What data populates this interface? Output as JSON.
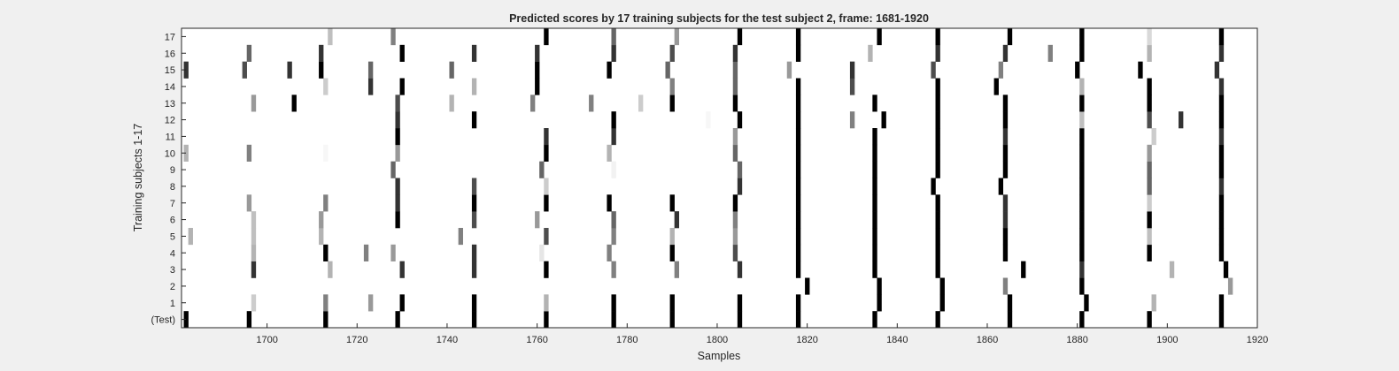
{
  "chart_data": {
    "type": "heatmap",
    "title": "Predicted scores by 17 training subjects for the test subject 2, frame: 1681-1920",
    "xlabel": "Samples",
    "ylabel": "Training subjects 1-17",
    "xlim": [
      1681,
      1920
    ],
    "xticks": [
      1700,
      1720,
      1740,
      1760,
      1780,
      1800,
      1820,
      1840,
      1860,
      1880,
      1900,
      1920
    ],
    "rows": [
      "(Test)",
      "1",
      "2",
      "3",
      "4",
      "5",
      "6",
      "7",
      "8",
      "9",
      "10",
      "11",
      "12",
      "13",
      "14",
      "15",
      "16",
      "17"
    ],
    "grid": false,
    "colormap": "gray-inverted",
    "value_range": [
      0,
      1
    ],
    "marks": [
      {
        "row": "(Test)",
        "x": [
          1682,
          1696,
          1713,
          1729,
          1746,
          1762,
          1777,
          1790,
          1805,
          1818,
          1835,
          1849,
          1865,
          1881,
          1896,
          1912
        ],
        "v": [
          1,
          1,
          1,
          1,
          1,
          1,
          1,
          1,
          1,
          1,
          1,
          1,
          1,
          1,
          1,
          1
        ]
      },
      {
        "row": "1",
        "x": [
          1697,
          1713,
          1723,
          1730,
          1746,
          1762,
          1777,
          1790,
          1805,
          1818,
          1836,
          1850,
          1865,
          1882,
          1897,
          1912
        ],
        "v": [
          0.2,
          0.5,
          0.4,
          1,
          1,
          0.3,
          1,
          1,
          1,
          1,
          1,
          1,
          1,
          1,
          0.3,
          1
        ]
      },
      {
        "row": "2",
        "x": [
          1820,
          1836,
          1850,
          1864,
          1881,
          1914
        ],
        "v": [
          1,
          1,
          1,
          0.5,
          1,
          0.4
        ]
      },
      {
        "row": "3",
        "x": [
          1697,
          1714,
          1730,
          1746,
          1762,
          1777,
          1791,
          1805,
          1818,
          1835,
          1849,
          1868,
          1881,
          1901,
          1913
        ],
        "v": [
          0.8,
          0.3,
          0.8,
          0.8,
          1,
          0.5,
          0.5,
          0.8,
          1,
          1,
          1,
          1,
          0.8,
          0.3,
          1
        ]
      },
      {
        "row": "4",
        "x": [
          1697,
          1713,
          1722,
          1728,
          1746,
          1761,
          1776,
          1790,
          1804,
          1818,
          1835,
          1849,
          1864,
          1881,
          1896,
          1912
        ],
        "v": [
          0.3,
          1,
          0.5,
          0.4,
          0.8,
          0.1,
          0.5,
          1,
          0.7,
          1,
          1,
          1,
          1,
          1,
          1,
          1
        ]
      },
      {
        "row": "5",
        "x": [
          1683,
          1697,
          1712,
          1743,
          1762,
          1777,
          1790,
          1804,
          1818,
          1835,
          1849,
          1864,
          1881,
          1896,
          1912
        ],
        "v": [
          0.3,
          0.25,
          0.3,
          0.5,
          0.7,
          0.5,
          0.3,
          0.4,
          1,
          1,
          1,
          1,
          1,
          0.25,
          1
        ]
      },
      {
        "row": "6",
        "x": [
          1697,
          1712,
          1729,
          1746,
          1760,
          1777,
          1791,
          1804,
          1818,
          1835,
          1849,
          1864,
          1881,
          1896,
          1912
        ],
        "v": [
          0.25,
          0.4,
          1,
          0.7,
          0.4,
          0.6,
          0.8,
          0.5,
          1,
          1,
          1,
          0.8,
          1,
          1,
          1
        ]
      },
      {
        "row": "7",
        "x": [
          1696,
          1713,
          1729,
          1746,
          1762,
          1776,
          1790,
          1804,
          1818,
          1835,
          1849,
          1864,
          1881,
          1896,
          1912
        ],
        "v": [
          0.4,
          0.5,
          0.8,
          1,
          1,
          1,
          1,
          1,
          1,
          1,
          1,
          0.8,
          1,
          0.2,
          1
        ]
      },
      {
        "row": "8",
        "x": [
          1729,
          1746,
          1762,
          1805,
          1818,
          1835,
          1848,
          1863,
          1881,
          1896,
          1912
        ],
        "v": [
          0.8,
          0.7,
          0.2,
          0.8,
          1,
          1,
          1,
          1,
          1,
          0.6,
          0.8
        ]
      },
      {
        "row": "9",
        "x": [
          1728,
          1761,
          1777,
          1805,
          1818,
          1835,
          1849,
          1864,
          1881,
          1896,
          1912
        ],
        "v": [
          0.6,
          0.6,
          0.05,
          0.6,
          1,
          1,
          1,
          1,
          1,
          0.6,
          1
        ]
      },
      {
        "row": "10",
        "x": [
          1682,
          1696,
          1713,
          1729,
          1762,
          1776,
          1804,
          1818,
          1835,
          1849,
          1864,
          1881,
          1896,
          1912
        ],
        "v": [
          0.3,
          0.5,
          0.03,
          0.4,
          1,
          0.3,
          0.6,
          1,
          1,
          1,
          1,
          1,
          0.4,
          1
        ]
      },
      {
        "row": "11",
        "x": [
          1729,
          1762,
          1777,
          1804,
          1818,
          1835,
          1849,
          1864,
          1881,
          1897,
          1912
        ],
        "v": [
          1,
          0.8,
          0.8,
          0.4,
          1,
          1,
          1,
          0.8,
          1,
          0.2,
          0.8
        ]
      },
      {
        "row": "12",
        "x": [
          1729,
          1746,
          1777,
          1798,
          1805,
          1818,
          1830,
          1837,
          1849,
          1864,
          1881,
          1896,
          1903,
          1912
        ],
        "v": [
          0.8,
          1,
          1,
          0.03,
          1,
          1,
          0.5,
          1,
          1,
          1,
          0.25,
          0.7,
          0.8,
          1
        ]
      },
      {
        "row": "13",
        "x": [
          1697,
          1706,
          1729,
          1741,
          1759,
          1772,
          1783,
          1790,
          1804,
          1818,
          1835,
          1849,
          1864,
          1881,
          1896,
          1912
        ],
        "v": [
          0.4,
          1,
          0.7,
          0.3,
          0.5,
          0.5,
          0.2,
          1,
          1,
          1,
          1,
          1,
          1,
          1,
          1,
          1
        ]
      },
      {
        "row": "14",
        "x": [
          1713,
          1723,
          1730,
          1746,
          1760,
          1790,
          1804,
          1818,
          1830,
          1849,
          1862,
          1881,
          1896,
          1912
        ],
        "v": [
          0.2,
          0.8,
          1,
          0.3,
          1,
          0.5,
          0.6,
          1,
          0.7,
          1,
          1,
          0.3,
          1,
          0.8
        ]
      },
      {
        "row": "15",
        "x": [
          1682,
          1695,
          1705,
          1712,
          1723,
          1741,
          1760,
          1776,
          1789,
          1804,
          1816,
          1830,
          1848,
          1863,
          1880,
          1894,
          1911
        ],
        "v": [
          0.8,
          0.7,
          0.8,
          1,
          0.6,
          0.6,
          1,
          1,
          0.6,
          0.6,
          0.4,
          0.8,
          0.7,
          0.5,
          1,
          1,
          0.8
        ]
      },
      {
        "row": "16",
        "x": [
          1696,
          1712,
          1730,
          1746,
          1760,
          1777,
          1790,
          1804,
          1818,
          1834,
          1849,
          1864,
          1874,
          1881,
          1896,
          1912
        ],
        "v": [
          0.6,
          0.8,
          1,
          0.8,
          0.8,
          0.8,
          0.7,
          0.8,
          1,
          0.3,
          0.8,
          0.8,
          0.5,
          1,
          0.3,
          0.8
        ]
      },
      {
        "row": "17",
        "x": [
          1714,
          1728,
          1762,
          1777,
          1791,
          1805,
          1818,
          1836,
          1849,
          1865,
          1881,
          1896,
          1912
        ],
        "v": [
          0.25,
          0.5,
          1,
          0.6,
          0.4,
          1,
          1,
          1,
          1,
          1,
          1,
          0.15,
          1
        ]
      }
    ]
  }
}
